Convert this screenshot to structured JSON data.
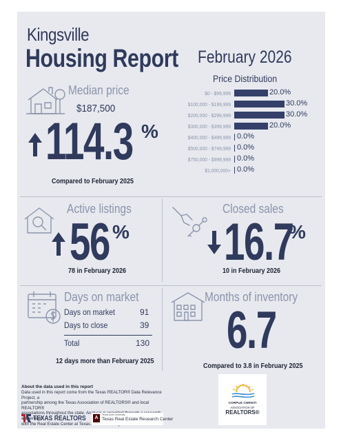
{
  "header": {
    "city": "Kingsville",
    "report_title": "Housing Report",
    "month": "February 2026"
  },
  "price_distribution": {
    "title": "Price Distribution",
    "bars": [
      {
        "label": "$0 - $99,999",
        "value": "20.0%",
        "fraction": 0.2
      },
      {
        "label": "$100,000 - $199,999",
        "value": "30.0%",
        "fraction": 0.3
      },
      {
        "label": "$200,000 - $299,999",
        "value": "30.0%",
        "fraction": 0.3
      },
      {
        "label": "$300,000 - $399,999",
        "value": "20.0%",
        "fraction": 0.2
      },
      {
        "label": "$400,000 - $499,999",
        "value": "0.0%",
        "fraction": 0
      },
      {
        "label": "$500,000 - $749,999",
        "value": "0.0%",
        "fraction": 0
      },
      {
        "label": "$750,000 - $999,999",
        "value": "0.0%",
        "fraction": 0
      },
      {
        "label": "$1,000,000+",
        "value": "0.0%",
        "fraction": 0
      }
    ]
  },
  "median_price": {
    "heading": "Median price",
    "value": "$187,500",
    "change": "114.3",
    "pct_sign": "%",
    "direction": "up",
    "caption": "Compared to February 2025"
  },
  "active_listings": {
    "heading": "Active listings",
    "change": "56",
    "pct_sign": "%",
    "direction": "up",
    "caption": "78 in February 2026"
  },
  "closed_sales": {
    "heading": "Closed sales",
    "change": "16.7",
    "pct_sign": "%",
    "direction": "down",
    "caption": "10 in February 2026"
  },
  "days_on_market": {
    "heading": "Days on market",
    "rows": [
      {
        "label": "Days on market",
        "value": "91"
      },
      {
        "label": "Days to close",
        "value": "39"
      }
    ],
    "total_label": "Total",
    "total_value": "130",
    "caption": "12 days more than February 2025"
  },
  "months_inventory": {
    "heading": "Months of inventory",
    "value": "6.7",
    "caption": "Compared to 3.8 in February 2025"
  },
  "footer": {
    "about_heading": "About the data used in this report",
    "about_lines": [
      "Data used in this report come from the Texas REALTOR® Data Relevance Project, a",
      "partnership among the Texas Association of REALTORS® and local REALTOR®",
      "associations throughout the state. Analysis is provided through a research agreement",
      "with the Real Estate Center at Texas A&M University."
    ],
    "texas_realtors_logo": "TEXAS REALTORS",
    "rerc_small": "Texas A&M University",
    "rerc_logo": "Texas Real Estate Research Center",
    "cc_logo_lines": [
      "CORPUS CHRISTI",
      "ASSOCIATION OF",
      "REALTORS®"
    ]
  },
  "colors": {
    "panel": "#e7e9ee",
    "navy": "#2f3a5c",
    "muted": "#8b94ac",
    "bar": "#34406a",
    "accent_red": "#b3262f"
  }
}
